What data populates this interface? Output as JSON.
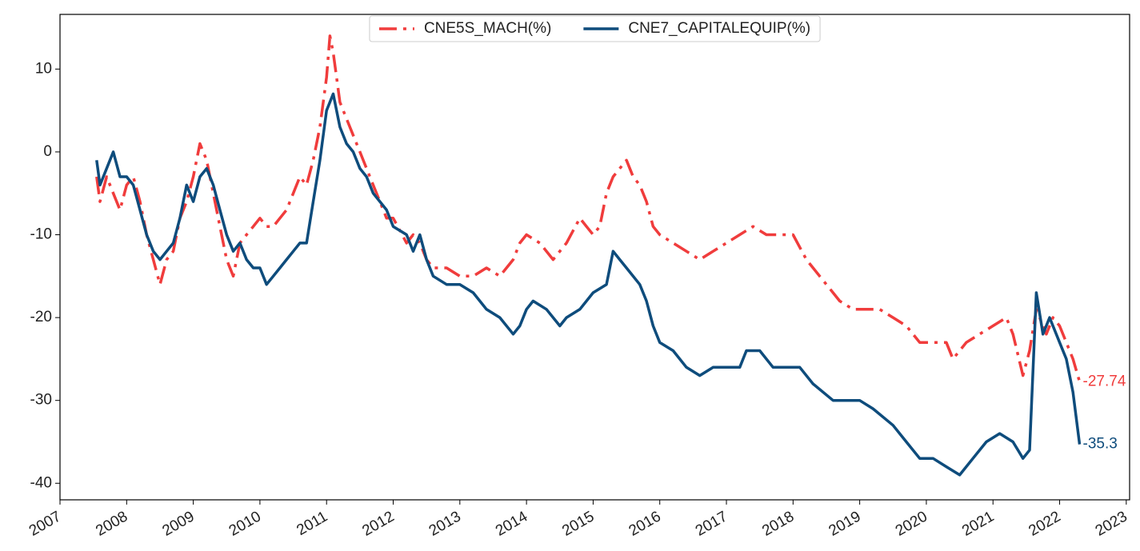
{
  "chart_data": {
    "type": "line",
    "xlim": [
      2007,
      2023.05
    ],
    "xticks": [
      2007,
      2008,
      2009,
      2010,
      2011,
      2012,
      2013,
      2014,
      2015,
      2016,
      2017,
      2018,
      2019,
      2020,
      2021,
      2022,
      2023
    ],
    "ylim": [
      -42,
      16.6
    ],
    "yticks": [
      10,
      0,
      -10,
      -20,
      -30,
      -40
    ],
    "grid": false,
    "legend": "upper center",
    "series": [
      {
        "name": "CNE5S_MACH(%)",
        "color": "#f03c3c",
        "linestyle": "dashdot",
        "x": [
          2007.55,
          2007.6,
          2007.7,
          2007.8,
          2007.9,
          2008.0,
          2008.1,
          2008.2,
          2008.3,
          2008.4,
          2008.5,
          2008.6,
          2008.7,
          2008.8,
          2008.9,
          2009.0,
          2009.1,
          2009.2,
          2009.3,
          2009.4,
          2009.5,
          2009.6,
          2009.7,
          2009.8,
          2009.9,
          2010.0,
          2010.1,
          2010.2,
          2010.3,
          2010.4,
          2010.5,
          2010.6,
          2010.7,
          2010.8,
          2010.9,
          2011.0,
          2011.05,
          2011.1,
          2011.2,
          2011.3,
          2011.4,
          2011.5,
          2011.6,
          2011.7,
          2011.8,
          2011.9,
          2012.0,
          2012.2,
          2012.3,
          2012.4,
          2012.5,
          2012.6,
          2012.8,
          2013.0,
          2013.2,
          2013.4,
          2013.6,
          2013.8,
          2013.9,
          2014.0,
          2014.2,
          2014.4,
          2014.6,
          2014.8,
          2014.9,
          2015.0,
          2015.1,
          2015.2,
          2015.3,
          2015.4,
          2015.5,
          2015.6,
          2015.7,
          2015.8,
          2015.9,
          2016.0,
          2016.2,
          2016.4,
          2016.6,
          2016.8,
          2017.0,
          2017.2,
          2017.4,
          2017.6,
          2017.8,
          2018.0,
          2018.2,
          2018.4,
          2018.6,
          2018.7,
          2018.9,
          2019.1,
          2019.3,
          2019.5,
          2019.7,
          2019.9,
          2020.1,
          2020.3,
          2020.4,
          2020.6,
          2020.8,
          2021.0,
          2021.2,
          2021.3,
          2021.45,
          2021.55,
          2021.65,
          2021.8,
          2021.9,
          2022.0,
          2022.1,
          2022.2,
          2022.3
        ],
        "values": [
          -3,
          -6,
          -3,
          -5,
          -7,
          -4,
          -3,
          -6,
          -10,
          -13,
          -16,
          -13,
          -12,
          -8,
          -6,
          -3,
          1,
          -1,
          -5,
          -9,
          -13,
          -15,
          -11,
          -10,
          -9,
          -8,
          -9,
          -9,
          -8,
          -7,
          -5,
          -3,
          -4,
          -1,
          3,
          9,
          14,
          12,
          6,
          4,
          2,
          0,
          -2,
          -4,
          -6,
          -8,
          -8,
          -11,
          -10,
          -11,
          -13,
          -14,
          -14,
          -15,
          -15,
          -14,
          -15,
          -13,
          -11,
          -10,
          -11,
          -13,
          -11,
          -8,
          -9,
          -10,
          -9,
          -5,
          -3,
          -2,
          -1,
          -3,
          -4,
          -6,
          -9,
          -10,
          -11,
          -12,
          -13,
          -12,
          -11,
          -10,
          -9,
          -10,
          -10,
          -10,
          -13,
          -15,
          -17,
          -18,
          -19,
          -19,
          -19,
          -20,
          -21,
          -23,
          -23,
          -23,
          -25,
          -23,
          -22,
          -21,
          -20,
          -22,
          -27,
          -24,
          -19,
          -22,
          -20,
          -21,
          -23,
          -25,
          -27.74
        ]
      },
      {
        "name": "CNE7_CAPITALEQUIP(%)",
        "color": "#0e4c7c",
        "linestyle": "solid",
        "x": [
          2007.55,
          2007.6,
          2007.7,
          2007.8,
          2007.9,
          2008.0,
          2008.1,
          2008.2,
          2008.3,
          2008.4,
          2008.5,
          2008.6,
          2008.7,
          2008.8,
          2008.9,
          2009.0,
          2009.1,
          2009.2,
          2009.3,
          2009.4,
          2009.5,
          2009.6,
          2009.7,
          2009.8,
          2009.9,
          2010.0,
          2010.1,
          2010.2,
          2010.3,
          2010.4,
          2010.5,
          2010.6,
          2010.7,
          2010.8,
          2010.9,
          2011.0,
          2011.1,
          2011.2,
          2011.3,
          2011.4,
          2011.5,
          2011.6,
          2011.7,
          2011.8,
          2011.9,
          2012.0,
          2012.2,
          2012.3,
          2012.4,
          2012.5,
          2012.6,
          2012.8,
          2013.0,
          2013.2,
          2013.4,
          2013.6,
          2013.8,
          2013.9,
          2014.0,
          2014.1,
          2014.3,
          2014.5,
          2014.6,
          2014.8,
          2015.0,
          2015.2,
          2015.3,
          2015.4,
          2015.5,
          2015.7,
          2015.8,
          2015.9,
          2016.0,
          2016.2,
          2016.4,
          2016.6,
          2016.8,
          2017.0,
          2017.2,
          2017.3,
          2017.5,
          2017.7,
          2017.9,
          2018.1,
          2018.3,
          2018.6,
          2018.8,
          2019.0,
          2019.2,
          2019.5,
          2019.7,
          2019.9,
          2020.1,
          2020.3,
          2020.5,
          2020.7,
          2020.9,
          2021.1,
          2021.3,
          2021.45,
          2021.55,
          2021.65,
          2021.75,
          2021.85,
          2022.0,
          2022.1,
          2022.2,
          2022.3
        ],
        "values": [
          -1,
          -4,
          -2,
          0,
          -3,
          -3,
          -4,
          -7,
          -10,
          -12,
          -13,
          -12,
          -11,
          -8,
          -4,
          -6,
          -3,
          -2,
          -4,
          -7,
          -10,
          -12,
          -11,
          -13,
          -14,
          -14,
          -16,
          -15,
          -14,
          -13,
          -12,
          -11,
          -11,
          -6,
          -1,
          5,
          7,
          3,
          1,
          0,
          -2,
          -3,
          -5,
          -6,
          -7,
          -9,
          -10,
          -12,
          -10,
          -13,
          -15,
          -16,
          -16,
          -17,
          -19,
          -20,
          -22,
          -21,
          -19,
          -18,
          -19,
          -21,
          -20,
          -19,
          -17,
          -16,
          -12,
          -13,
          -14,
          -16,
          -18,
          -21,
          -23,
          -24,
          -26,
          -27,
          -26,
          -26,
          -26,
          -24,
          -24,
          -26,
          -26,
          -26,
          -28,
          -30,
          -30,
          -30,
          -31,
          -33,
          -35,
          -37,
          -37,
          -38,
          -39,
          -37,
          -35,
          -34,
          -35,
          -37,
          -36,
          -17,
          -22,
          -20,
          -23,
          -25,
          -29,
          -35.3
        ]
      }
    ]
  }
}
